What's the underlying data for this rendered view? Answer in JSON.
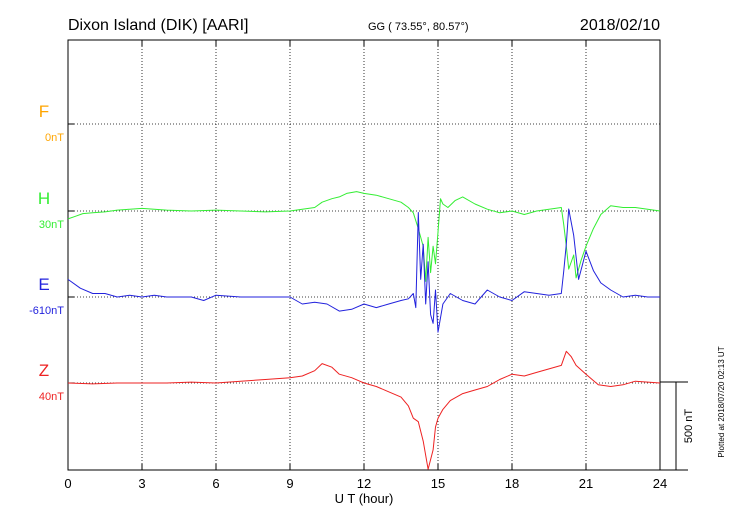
{
  "header": {
    "station": "Dixon Island (DIK)  [AARI]",
    "coords": "GG ( 73.55°,  80.57°)",
    "date": "2018/02/10"
  },
  "footer": {
    "plotted": "Plotted at 2018/07/20 02:13 UT"
  },
  "scale": {
    "label": "500 nT"
  },
  "chart_data": {
    "type": "line",
    "xlabel": "U T (hour)",
    "xlim": [
      0,
      24
    ],
    "xticks": [
      0,
      3,
      6,
      9,
      12,
      15,
      18,
      21,
      24
    ],
    "grid": true,
    "series": [
      {
        "name": "F",
        "baseline_label": "0nT",
        "color": "#ffa500",
        "x": [],
        "y": []
      },
      {
        "name": "H",
        "baseline_label": "30nT",
        "color": "#33ee33",
        "x": [
          0,
          0.3,
          0.6,
          1,
          1.5,
          2,
          2.5,
          3,
          3.5,
          4,
          5,
          6,
          7,
          8,
          9,
          9.5,
          10,
          10.3,
          10.7,
          11,
          11.3,
          11.7,
          12,
          12.5,
          13,
          13.5,
          13.8,
          14.0,
          14.2,
          14.4,
          14.5,
          14.6,
          14.7,
          14.8,
          14.9,
          15.0,
          15.1,
          15.2,
          15.4,
          15.7,
          16,
          16.5,
          17,
          17.5,
          18,
          18.5,
          19,
          19.5,
          20,
          20.1,
          20.2,
          20.3,
          20.5,
          20.6,
          20.8,
          21,
          21.3,
          21.6,
          22,
          22.5,
          23,
          23.5,
          24
        ],
        "y": [
          -45,
          -30,
          -15,
          -10,
          -5,
          5,
          10,
          15,
          10,
          5,
          0,
          5,
          0,
          -5,
          0,
          10,
          20,
          50,
          70,
          80,
          100,
          110,
          100,
          90,
          70,
          50,
          20,
          -10,
          -100,
          -200,
          -400,
          -150,
          -350,
          -200,
          -300,
          -120,
          70,
          40,
          20,
          60,
          80,
          40,
          10,
          -10,
          0,
          -20,
          0,
          10,
          20,
          -80,
          -200,
          -330,
          -250,
          -380,
          -280,
          -200,
          -100,
          -20,
          30,
          20,
          20,
          10,
          0
        ]
      },
      {
        "name": "E",
        "baseline_label": "-610nT",
        "color": "#2222dd",
        "x": [
          0,
          0.5,
          1,
          1.5,
          2,
          2.5,
          3,
          3.5,
          4,
          5,
          5.5,
          6,
          7,
          8,
          9,
          9.5,
          10,
          10.5,
          11,
          11.5,
          12,
          12.5,
          13,
          13.5,
          13.8,
          14.0,
          14.1,
          14.2,
          14.3,
          14.4,
          14.5,
          14.6,
          14.7,
          14.8,
          14.9,
          15.0,
          15.2,
          15.5,
          16,
          16.5,
          17,
          17.5,
          18,
          18.5,
          19,
          19.5,
          20,
          20.1,
          20.2,
          20.3,
          20.5,
          20.7,
          21,
          21.3,
          21.6,
          22,
          22.5,
          23,
          23.5,
          24
        ],
        "y": [
          100,
          50,
          20,
          20,
          0,
          10,
          0,
          10,
          0,
          0,
          -20,
          10,
          0,
          0,
          0,
          -40,
          -30,
          -40,
          -80,
          -70,
          -40,
          -60,
          -40,
          -20,
          -10,
          20,
          -60,
          480,
          100,
          300,
          -40,
          200,
          -100,
          -150,
          40,
          -200,
          -40,
          20,
          -20,
          -40,
          40,
          0,
          -20,
          30,
          20,
          10,
          20,
          150,
          300,
          500,
          350,
          100,
          260,
          150,
          80,
          40,
          0,
          10,
          0,
          0
        ]
      },
      {
        "name": "Z",
        "baseline_label": "40nT",
        "color": "#ee2222",
        "x": [
          0,
          1,
          2,
          3,
          4,
          5,
          6,
          7,
          8,
          9,
          9.5,
          10,
          10.3,
          10.7,
          11,
          11.5,
          12,
          12.5,
          13,
          13.5,
          13.8,
          14.0,
          14.2,
          14.4,
          14.6,
          14.8,
          14.9,
          15.0,
          15.2,
          15.5,
          16,
          16.5,
          17,
          17.5,
          18,
          18.5,
          19,
          19.5,
          20,
          20.2,
          20.4,
          20.6,
          21,
          21.5,
          22,
          22.5,
          23,
          24
        ],
        "y": [
          0,
          -5,
          0,
          0,
          0,
          5,
          0,
          10,
          20,
          30,
          40,
          70,
          110,
          90,
          50,
          30,
          0,
          -20,
          -50,
          -80,
          -130,
          -200,
          -220,
          -330,
          -490,
          -380,
          -250,
          -200,
          -150,
          -100,
          -60,
          -40,
          -20,
          20,
          50,
          40,
          60,
          80,
          100,
          180,
          150,
          100,
          50,
          -10,
          -20,
          -10,
          10,
          0
        ]
      }
    ]
  }
}
